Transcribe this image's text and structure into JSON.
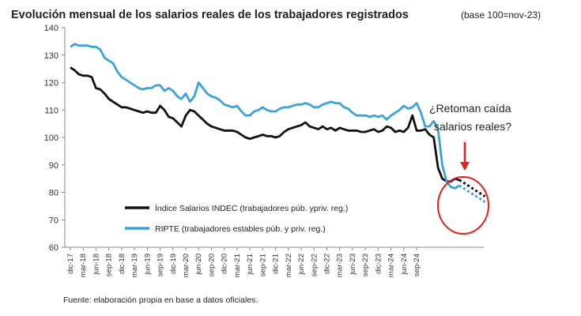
{
  "chart_data": {
    "type": "line",
    "title": "Evolución mensual de los salarios reales de los trabajadores registrados",
    "subtitle": "(base 100=nov-23)",
    "ylim": [
      60,
      140
    ],
    "yticks": [
      60,
      70,
      80,
      90,
      100,
      110,
      120,
      130,
      140
    ],
    "x_start": "dic-17",
    "tick_labels": [
      "dic-17",
      "mar-18",
      "jun-18",
      "sep-18",
      "dic-18",
      "mar-19",
      "jun-19",
      "sep-19",
      "dic-19",
      "mar-20",
      "jun-20",
      "sep-20",
      "dic-20",
      "mar-21",
      "jun-21",
      "sep-21",
      "dic-21",
      "mar-22",
      "jun-22",
      "sep-22",
      "dic-22",
      "mar-23",
      "jun-23",
      "sep-23",
      "dic-23",
      "mar-24",
      "jun-24",
      "sep-24"
    ],
    "grid": false,
    "legend_position": "lower-left",
    "series": [
      {
        "name": "Índice Salarios INDEC (trabajadores púb. ypriv. reg.)",
        "color": "#111111",
        "values": [
          125.5,
          124.5,
          123,
          122.5,
          122.5,
          122,
          118,
          117.5,
          116,
          114,
          113,
          112,
          111,
          111,
          110.5,
          110,
          109.5,
          109,
          109.5,
          109,
          109,
          111.5,
          110,
          107.5,
          107,
          105.5,
          104,
          108,
          110,
          109.5,
          108,
          106.5,
          105,
          104,
          103.5,
          103,
          102.5,
          102.5,
          102.5,
          102,
          101,
          100,
          99.5,
          100,
          100.5,
          101,
          100.5,
          100.5,
          100,
          100.5,
          102,
          103,
          103.5,
          104,
          104.5,
          105.5,
          104,
          103.5,
          103,
          104,
          103,
          103.5,
          102.5,
          103.5,
          103,
          102.5,
          102.5,
          102.5,
          102,
          102,
          102.5,
          103,
          102,
          102.5,
          104,
          103.5,
          102,
          102.5,
          102,
          103.5,
          108,
          102.5,
          102.5,
          103,
          101,
          100,
          89,
          85,
          84,
          84,
          85,
          84.5
        ],
        "projection": [
          84.5,
          83.5,
          82.5,
          81.5,
          80.5,
          79.5,
          78.5
        ]
      },
      {
        "name": "RIPTE (trabajadores estables púb. y priv. reg.)",
        "color": "#3ba3da",
        "values": [
          133,
          134,
          133.5,
          133.5,
          133.5,
          133,
          133,
          132,
          129,
          128,
          127,
          124,
          122,
          121,
          120,
          119,
          118,
          117.5,
          118,
          118,
          119,
          119,
          117,
          118,
          117,
          115,
          114,
          116,
          113,
          115,
          120,
          118,
          116,
          115,
          114.5,
          113.5,
          112,
          111.5,
          111,
          111.5,
          109.5,
          108,
          108,
          109.5,
          110,
          111,
          110,
          109.5,
          109.5,
          110.5,
          111,
          111,
          111.5,
          112,
          112,
          112.5,
          112,
          111,
          111,
          112,
          112.5,
          113,
          112.5,
          112.5,
          111,
          110.5,
          109,
          108,
          108,
          108,
          107.5,
          108,
          107.5,
          108,
          106.5,
          108,
          109,
          110,
          111.5,
          110.5,
          111,
          112.5,
          109,
          104,
          104,
          106,
          103,
          90,
          84,
          82,
          81.5,
          82.5
        ],
        "projection": [
          82.5,
          81.5,
          80.5,
          79.5,
          78.5,
          77.5,
          76.5
        ]
      }
    ],
    "annotation": {
      "lines": [
        "¿Retoman caída",
        "salarios reales?"
      ],
      "arrow_color": "#e0241b",
      "circle_color": "#e0241b"
    }
  },
  "footer": {
    "source": "Fuente: elaboración propia en base a datos oficiales."
  }
}
